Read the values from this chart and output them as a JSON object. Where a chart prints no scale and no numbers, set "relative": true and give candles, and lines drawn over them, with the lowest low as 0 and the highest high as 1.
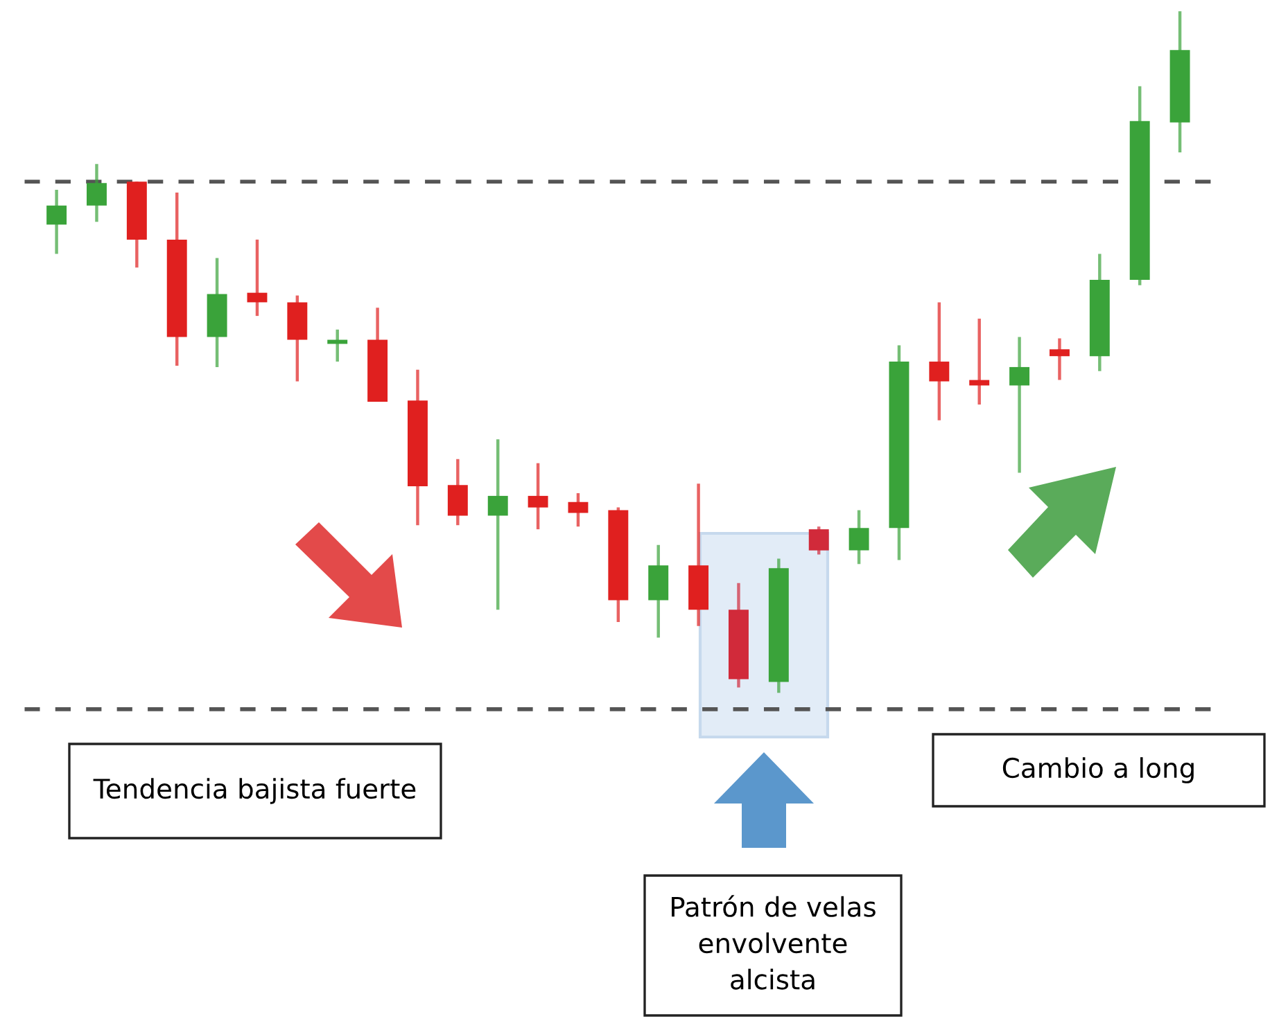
{
  "chart_data": {
    "type": "candlestick",
    "relative": true,
    "categories": [
      null,
      null,
      null,
      null,
      null,
      null,
      null,
      null,
      null,
      null,
      null,
      null,
      null,
      null,
      null,
      null,
      null,
      null,
      null,
      null,
      null,
      null,
      null,
      null,
      null,
      null,
      null,
      null,
      null
    ],
    "ohlc": [
      [
        0.687,
        0.738,
        0.644,
        0.715
      ],
      [
        0.715,
        0.776,
        0.691,
        0.748
      ],
      [
        0.75,
        0.75,
        0.624,
        0.665
      ],
      [
        0.665,
        0.734,
        0.48,
        0.522
      ],
      [
        0.522,
        0.638,
        0.478,
        0.585
      ],
      [
        0.587,
        0.665,
        0.553,
        0.573
      ],
      [
        0.573,
        0.583,
        0.457,
        0.518
      ],
      [
        0.512,
        0.533,
        0.486,
        0.518
      ],
      [
        0.518,
        0.565,
        0.427,
        0.427
      ],
      [
        0.429,
        0.474,
        0.246,
        0.303
      ],
      [
        0.305,
        0.343,
        0.246,
        0.26
      ],
      [
        0.26,
        0.372,
        0.122,
        0.289
      ],
      [
        0.289,
        0.337,
        0.24,
        0.272
      ],
      [
        0.28,
        0.293,
        0.244,
        0.264
      ],
      [
        0.268,
        0.272,
        0.104,
        0.136
      ],
      [
        0.136,
        0.217,
        0.081,
        0.187
      ],
      [
        0.187,
        0.307,
        0.098,
        0.122
      ],
      [
        0.122,
        0.161,
        0.008,
        0.02
      ],
      [
        0.016,
        0.197,
        0.0,
        0.183
      ],
      [
        0.24,
        0.244,
        0.203,
        0.209
      ],
      [
        0.209,
        0.268,
        0.189,
        0.242
      ],
      [
        0.242,
        0.51,
        0.195,
        0.486
      ],
      [
        0.486,
        0.573,
        0.4,
        0.457
      ],
      [
        0.459,
        0.549,
        0.423,
        0.451
      ],
      [
        0.451,
        0.522,
        0.323,
        0.478
      ],
      [
        0.504,
        0.52,
        0.459,
        0.494
      ],
      [
        0.494,
        0.644,
        0.472,
        0.606
      ],
      [
        0.606,
        0.89,
        0.598,
        0.839
      ],
      [
        0.837,
        1.0,
        0.793,
        0.943
      ]
    ],
    "colors": [
      "#3aa33a",
      "#3aa33a",
      "#e0201f",
      "#e0201f",
      "#3aa33a",
      "#e0201f",
      "#e0201f",
      "#3aa33a",
      "#e0201f",
      "#e0201f",
      "#e0201f",
      "#3aa33a",
      "#e0201f",
      "#e0201f",
      "#e0201f",
      "#3aa33a",
      "#e0201f",
      "#d12a3a",
      "#3aa33a",
      "#d12a3a",
      "#3aa33a",
      "#3aa33a",
      "#e0201f",
      "#e0201f",
      "#3aa33a",
      "#e0201f",
      "#3aa33a",
      "#3aa33a",
      "#3aa33a"
    ],
    "ref_lines": [
      {
        "axis": "y",
        "value": 0.75,
        "color": "#555555",
        "line_style": "dashed"
      },
      {
        "axis": "y",
        "value": -0.024,
        "color": "#555555",
        "line_style": "dashed"
      }
    ],
    "annotations": [
      "Tendencia bajista fuerte",
      "Cambio a long",
      "Patrón de velas\nenvolvente\nalcista"
    ],
    "tick_labels": false
  }
}
